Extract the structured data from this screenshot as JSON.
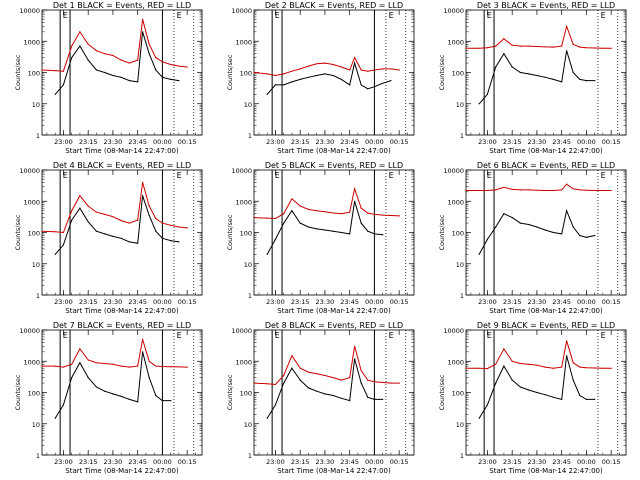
{
  "chart_data": [
    {
      "type": "line",
      "title": "Det 1 BLACK = Events, RED = LLD",
      "xlabel": "Start Time (08-Mar-14 22:47:00)",
      "ylabel": "Counts/sec",
      "ylog": true,
      "ylim": [
        1,
        10000
      ],
      "yticks": [
        1,
        10,
        100,
        1000,
        10000
      ],
      "xticks": [
        "23:00",
        "23:15",
        "23:30",
        "23:45",
        "00:00",
        "00:15"
      ],
      "flag_label": "E",
      "series": [
        {
          "role": "events",
          "color": "#000000",
          "x": [
            "22:55",
            "23:00",
            "23:05",
            "23:10",
            "23:15",
            "23:20",
            "23:25",
            "23:30",
            "23:35",
            "23:40",
            "23:45",
            "23:48",
            "23:52",
            "23:56",
            "00:00",
            "00:05",
            "00:10"
          ],
          "values": [
            20,
            40,
            300,
            700,
            250,
            120,
            100,
            80,
            70,
            55,
            50,
            2000,
            400,
            120,
            70,
            60,
            55
          ]
        },
        {
          "role": "lld",
          "color": "#cc0000",
          "x": [
            "22:47",
            "22:55",
            "23:00",
            "23:05",
            "23:10",
            "23:15",
            "23:20",
            "23:25",
            "23:30",
            "23:35",
            "23:40",
            "23:45",
            "23:48",
            "23:52",
            "23:56",
            "00:00",
            "00:05",
            "00:10",
            "00:15"
          ],
          "values": [
            120,
            115,
            110,
            700,
            2000,
            800,
            500,
            400,
            350,
            250,
            200,
            250,
            5000,
            800,
            300,
            220,
            180,
            160,
            150
          ]
        }
      ]
    },
    {
      "type": "line",
      "title": "Det 2 BLACK = Events, RED = LLD",
      "xlabel": "Start Time (08-Mar-14 22:47:00)",
      "ylabel": "Counts/sec",
      "ylog": true,
      "ylim": [
        1,
        10000
      ],
      "yticks": [
        1,
        10,
        100,
        1000,
        10000
      ],
      "xticks": [
        "23:00",
        "23:15",
        "23:30",
        "23:45",
        "00:00",
        "00:15"
      ],
      "flag_label": "E",
      "series": [
        {
          "role": "events",
          "color": "#000000",
          "x": [
            "22:55",
            "23:00",
            "23:05",
            "23:10",
            "23:15",
            "23:20",
            "23:25",
            "23:30",
            "23:35",
            "23:40",
            "23:45",
            "23:48",
            "23:52",
            "23:56",
            "00:00",
            "00:05",
            "00:10"
          ],
          "values": [
            20,
            40,
            40,
            50,
            60,
            70,
            80,
            90,
            80,
            60,
            40,
            200,
            40,
            30,
            35,
            45,
            55
          ]
        },
        {
          "role": "lld",
          "color": "#cc0000",
          "x": [
            "22:47",
            "22:55",
            "23:00",
            "23:05",
            "23:10",
            "23:15",
            "23:20",
            "23:25",
            "23:30",
            "23:35",
            "23:40",
            "23:45",
            "23:48",
            "23:52",
            "23:56",
            "00:00",
            "00:05",
            "00:10",
            "00:15"
          ],
          "values": [
            100,
            90,
            80,
            90,
            110,
            130,
            160,
            190,
            200,
            180,
            150,
            120,
            300,
            120,
            110,
            120,
            130,
            130,
            120
          ]
        }
      ]
    },
    {
      "type": "line",
      "title": "Det 3 BLACK = Events, RED = LLD",
      "xlabel": "Start Time (08-Mar-14 22:47:00)",
      "ylabel": "Counts/sec",
      "ylog": true,
      "ylim": [
        1,
        10000
      ],
      "yticks": [
        1,
        10,
        100,
        1000,
        10000
      ],
      "xticks": [
        "23:00",
        "23:15",
        "23:30",
        "23:45",
        "00:00",
        "00:15"
      ],
      "flag_label": "E",
      "series": [
        {
          "role": "events",
          "color": "#000000",
          "x": [
            "22:55",
            "23:00",
            "23:05",
            "23:10",
            "23:15",
            "23:20",
            "23:25",
            "23:30",
            "23:35",
            "23:40",
            "23:45",
            "23:48",
            "23:52",
            "23:56",
            "00:00",
            "00:05"
          ],
          "values": [
            10,
            20,
            150,
            400,
            150,
            100,
            90,
            80,
            70,
            60,
            50,
            500,
            100,
            60,
            55,
            55
          ]
        },
        {
          "role": "lld",
          "color": "#cc0000",
          "x": [
            "22:47",
            "22:55",
            "23:00",
            "23:05",
            "23:10",
            "23:15",
            "23:20",
            "23:25",
            "23:30",
            "23:35",
            "23:40",
            "23:45",
            "23:48",
            "23:52",
            "23:56",
            "00:00",
            "00:05",
            "00:10",
            "00:15"
          ],
          "values": [
            600,
            600,
            620,
            700,
            1200,
            750,
            700,
            700,
            680,
            660,
            650,
            700,
            3000,
            800,
            650,
            620,
            610,
            600,
            600
          ]
        }
      ]
    },
    {
      "type": "line",
      "title": "Det 4 BLACK = Events, RED = LLD",
      "xlabel": "Start Time (08-Mar-14 22:47:00)",
      "ylabel": "Counts/sec",
      "ylog": true,
      "ylim": [
        1,
        10000
      ],
      "yticks": [
        1,
        10,
        100,
        1000,
        10000
      ],
      "xticks": [
        "23:00",
        "23:15",
        "23:30",
        "23:45",
        "00:00",
        "00:15"
      ],
      "flag_label": "E",
      "series": [
        {
          "role": "events",
          "color": "#000000",
          "x": [
            "22:55",
            "23:00",
            "23:05",
            "23:10",
            "23:15",
            "23:20",
            "23:25",
            "23:30",
            "23:35",
            "23:40",
            "23:45",
            "23:48",
            "23:52",
            "23:56",
            "00:00",
            "00:05",
            "00:10"
          ],
          "values": [
            20,
            40,
            250,
            600,
            220,
            110,
            90,
            75,
            65,
            50,
            45,
            1500,
            350,
            110,
            65,
            55,
            50
          ]
        },
        {
          "role": "lld",
          "color": "#cc0000",
          "x": [
            "22:47",
            "22:55",
            "23:00",
            "23:05",
            "23:10",
            "23:15",
            "23:20",
            "23:25",
            "23:30",
            "23:35",
            "23:40",
            "23:45",
            "23:48",
            "23:52",
            "23:56",
            "00:00",
            "00:05",
            "00:10",
            "00:15"
          ],
          "values": [
            110,
            105,
            100,
            500,
            1500,
            700,
            450,
            380,
            320,
            240,
            200,
            250,
            4000,
            700,
            280,
            200,
            170,
            150,
            140
          ]
        }
      ]
    },
    {
      "type": "line",
      "title": "Det 5 BLACK = Events, RED = LLD",
      "xlabel": "Start Time (08-Mar-14 22:47:00)",
      "ylabel": "Counts/sec",
      "ylog": true,
      "ylim": [
        1,
        10000
      ],
      "yticks": [
        1,
        10,
        100,
        1000,
        10000
      ],
      "xticks": [
        "23:00",
        "23:15",
        "23:30",
        "23:45",
        "00:00",
        "00:15"
      ],
      "flag_label": "E",
      "series": [
        {
          "role": "events",
          "color": "#000000",
          "x": [
            "22:55",
            "23:00",
            "23:05",
            "23:10",
            "23:15",
            "23:20",
            "23:25",
            "23:30",
            "23:35",
            "23:40",
            "23:45",
            "23:48",
            "23:52",
            "23:56",
            "00:00",
            "00:05"
          ],
          "values": [
            20,
            60,
            200,
            500,
            200,
            150,
            130,
            120,
            110,
            100,
            90,
            1000,
            200,
            110,
            90,
            85
          ]
        },
        {
          "role": "lld",
          "color": "#cc0000",
          "x": [
            "22:47",
            "22:55",
            "23:00",
            "23:05",
            "23:10",
            "23:15",
            "23:20",
            "23:25",
            "23:30",
            "23:35",
            "23:40",
            "23:45",
            "23:48",
            "23:52",
            "23:56",
            "00:00",
            "00:05",
            "00:10",
            "00:15"
          ],
          "values": [
            300,
            290,
            280,
            400,
            1200,
            700,
            550,
            500,
            460,
            420,
            400,
            450,
            2500,
            600,
            420,
            380,
            360,
            350,
            340
          ]
        }
      ]
    },
    {
      "type": "line",
      "title": "Det 6 BLACK = Events, RED = LLD",
      "xlabel": "Start Time (08-Mar-14 22:47:00)",
      "ylabel": "Counts/sec",
      "ylog": true,
      "ylim": [
        1,
        10000
      ],
      "yticks": [
        1,
        10,
        100,
        1000,
        10000
      ],
      "xticks": [
        "23:00",
        "23:15",
        "23:30",
        "23:45",
        "00:00",
        "00:15"
      ],
      "flag_label": "E",
      "series": [
        {
          "role": "events",
          "color": "#000000",
          "x": [
            "22:55",
            "23:00",
            "23:05",
            "23:10",
            "23:15",
            "23:20",
            "23:25",
            "23:30",
            "23:35",
            "23:40",
            "23:45",
            "23:48",
            "23:52",
            "23:56",
            "00:00",
            "00:05"
          ],
          "values": [
            20,
            60,
            150,
            400,
            300,
            200,
            180,
            150,
            120,
            100,
            90,
            500,
            150,
            80,
            70,
            80
          ]
        },
        {
          "role": "lld",
          "color": "#cc0000",
          "x": [
            "22:47",
            "22:55",
            "23:00",
            "23:05",
            "23:10",
            "23:15",
            "23:20",
            "23:25",
            "23:30",
            "23:35",
            "23:40",
            "23:45",
            "23:48",
            "23:52",
            "23:56",
            "00:00",
            "00:05",
            "00:10",
            "00:15"
          ],
          "values": [
            2200,
            2200,
            2200,
            2300,
            2800,
            2400,
            2300,
            2300,
            2250,
            2200,
            2200,
            2300,
            3500,
            2500,
            2300,
            2250,
            2200,
            2200,
            2200
          ]
        }
      ]
    },
    {
      "type": "line",
      "title": "Det 7 BLACK = Events, RED = LLD",
      "xlabel": "Start Time (08-Mar-14 22:47:00)",
      "ylabel": "Counts/sec",
      "ylog": true,
      "ylim": [
        1,
        10000
      ],
      "yticks": [
        1,
        10,
        100,
        1000,
        10000
      ],
      "xticks": [
        "23:00",
        "23:15",
        "23:30",
        "23:45",
        "00:00",
        "00:15"
      ],
      "flag_label": "E",
      "series": [
        {
          "role": "events",
          "color": "#000000",
          "x": [
            "22:55",
            "23:00",
            "23:05",
            "23:10",
            "23:15",
            "23:20",
            "23:25",
            "23:30",
            "23:35",
            "23:40",
            "23:45",
            "23:48",
            "23:52",
            "23:56",
            "00:00",
            "00:05"
          ],
          "values": [
            15,
            40,
            300,
            900,
            300,
            150,
            110,
            90,
            75,
            60,
            50,
            2000,
            300,
            80,
            55,
            55
          ]
        },
        {
          "role": "lld",
          "color": "#cc0000",
          "x": [
            "22:47",
            "22:55",
            "23:00",
            "23:05",
            "23:10",
            "23:15",
            "23:20",
            "23:25",
            "23:30",
            "23:35",
            "23:40",
            "23:45",
            "23:48",
            "23:52",
            "23:56",
            "00:00",
            "00:05",
            "00:10",
            "00:15"
          ],
          "values": [
            700,
            700,
            650,
            800,
            2500,
            1100,
            900,
            850,
            800,
            700,
            650,
            700,
            5000,
            1000,
            700,
            680,
            670,
            660,
            650
          ]
        }
      ]
    },
    {
      "type": "line",
      "title": "Det 8 BLACK = Events, RED = LLD",
      "xlabel": "Start Time (08-Mar-14 22:47:00)",
      "ylabel": "Counts/sec",
      "ylog": true,
      "ylim": [
        1,
        10000
      ],
      "yticks": [
        1,
        10,
        100,
        1000,
        10000
      ],
      "xticks": [
        "23:00",
        "23:15",
        "23:30",
        "23:45",
        "00:00",
        "00:15"
      ],
      "flag_label": "E",
      "series": [
        {
          "role": "events",
          "color": "#000000",
          "x": [
            "22:55",
            "23:00",
            "23:05",
            "23:10",
            "23:15",
            "23:20",
            "23:25",
            "23:30",
            "23:35",
            "23:40",
            "23:45",
            "23:48",
            "23:52",
            "23:56",
            "00:00",
            "00:05"
          ],
          "values": [
            15,
            40,
            200,
            600,
            250,
            140,
            110,
            90,
            80,
            65,
            55,
            1200,
            200,
            70,
            60,
            60
          ]
        },
        {
          "role": "lld",
          "color": "#cc0000",
          "x": [
            "22:47",
            "22:55",
            "23:00",
            "23:05",
            "23:10",
            "23:15",
            "23:20",
            "23:25",
            "23:30",
            "23:35",
            "23:40",
            "23:45",
            "23:48",
            "23:52",
            "23:56",
            "00:00",
            "00:05",
            "00:10",
            "00:15"
          ],
          "values": [
            200,
            190,
            180,
            350,
            1500,
            600,
            450,
            400,
            350,
            300,
            250,
            300,
            3000,
            500,
            250,
            220,
            210,
            200,
            200
          ]
        }
      ]
    },
    {
      "type": "line",
      "title": "Det 9 BLACK = Events, RED = LLD",
      "xlabel": "Start Time (08-Mar-14 22:47:00)",
      "ylabel": "Counts/sec",
      "ylog": true,
      "ylim": [
        1,
        10000
      ],
      "yticks": [
        1,
        10,
        100,
        1000,
        10000
      ],
      "xticks": [
        "23:00",
        "23:15",
        "23:30",
        "23:45",
        "00:00",
        "00:15"
      ],
      "flag_label": "E",
      "series": [
        {
          "role": "events",
          "color": "#000000",
          "x": [
            "22:55",
            "23:00",
            "23:05",
            "23:10",
            "23:15",
            "23:20",
            "23:25",
            "23:30",
            "23:35",
            "23:40",
            "23:45",
            "23:48",
            "23:52",
            "23:56",
            "00:00",
            "00:05"
          ],
          "values": [
            15,
            40,
            200,
            700,
            250,
            150,
            120,
            100,
            85,
            70,
            60,
            1500,
            250,
            80,
            60,
            60
          ]
        },
        {
          "role": "lld",
          "color": "#cc0000",
          "x": [
            "22:47",
            "22:55",
            "23:00",
            "23:05",
            "23:10",
            "23:15",
            "23:20",
            "23:25",
            "23:30",
            "23:35",
            "23:40",
            "23:45",
            "23:48",
            "23:52",
            "23:56",
            "00:00",
            "00:05",
            "00:10",
            "00:15"
          ],
          "values": [
            600,
            600,
            580,
            800,
            2500,
            1000,
            850,
            800,
            750,
            650,
            600,
            650,
            4500,
            900,
            650,
            620,
            610,
            600,
            600
          ]
        }
      ]
    }
  ]
}
